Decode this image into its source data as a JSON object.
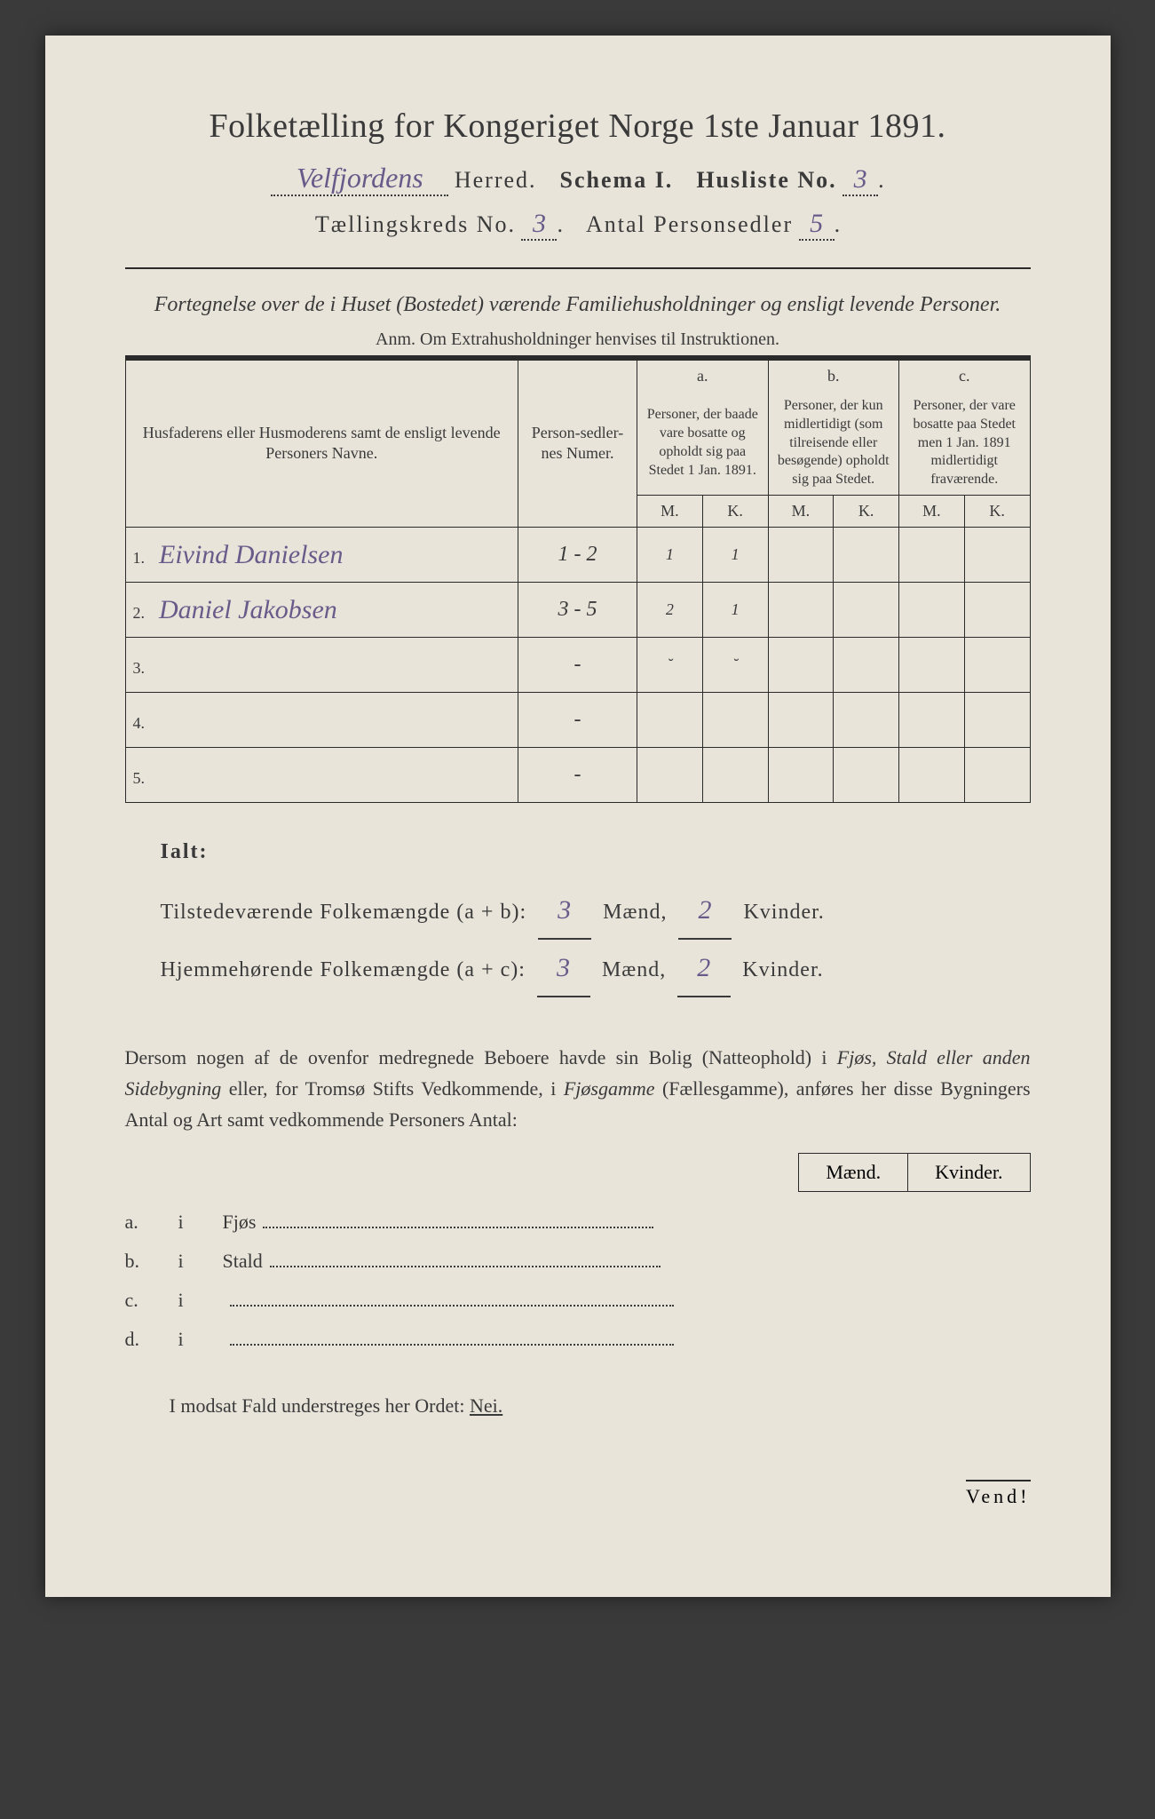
{
  "title": "Folketælling for Kongeriget Norge 1ste Januar 1891.",
  "header": {
    "herred_value": "Velfjordens",
    "herred_label": "Herred.",
    "schema_label": "Schema I.",
    "husliste_label": "Husliste No.",
    "husliste_no": "3",
    "tkreds_label": "Tællingskreds No.",
    "tkreds_no": "3",
    "personsedler_label": "Antal Personsedler",
    "personsedler_no": "5"
  },
  "subtitle": "Fortegnelse over de i Huset (Bostedet) værende Familiehusholdninger og ensligt levende Personer.",
  "anm": "Anm. Om Extrahusholdninger henvises til Instruktionen.",
  "table": {
    "col_names": "Husfaderens eller Husmoderens samt de ensligt levende Personers Navne.",
    "col_psn": "Person-sedler-nes Numer.",
    "col_a_letter": "a.",
    "col_a": "Personer, der baade vare bosatte og opholdt sig paa Stedet 1 Jan. 1891.",
    "col_b_letter": "b.",
    "col_b": "Personer, der kun midlertidigt (som tilreisende eller besøgende) opholdt sig paa Stedet.",
    "col_c_letter": "c.",
    "col_c": "Personer, der vare bosatte paa Stedet men 1 Jan. 1891 midlertidigt fraværende.",
    "m": "M.",
    "k": "K.",
    "rows": [
      {
        "num": "1.",
        "name": "Eivind Danielsen",
        "psn": "1 - 2",
        "am": "1",
        "ak": "1",
        "bm": "",
        "bk": "",
        "cm": "",
        "ck": ""
      },
      {
        "num": "2.",
        "name": "Daniel Jakobsen",
        "psn": "3 - 5",
        "am": "2",
        "ak": "1",
        "bm": "",
        "bk": "",
        "cm": "",
        "ck": ""
      },
      {
        "num": "3.",
        "name": "",
        "psn": "-",
        "am": "˘",
        "ak": "˘",
        "bm": "",
        "bk": "",
        "cm": "",
        "ck": ""
      },
      {
        "num": "4.",
        "name": "",
        "psn": "-",
        "am": "",
        "ak": "",
        "bm": "",
        "bk": "",
        "cm": "",
        "ck": ""
      },
      {
        "num": "5.",
        "name": "",
        "psn": "-",
        "am": "",
        "ak": "",
        "bm": "",
        "bk": "",
        "cm": "",
        "ck": ""
      }
    ]
  },
  "ialt": {
    "label": "Ialt:",
    "line1_a": "Tilstedeværende Folkemængde (a + b):",
    "line1_m": "3",
    "line1_k": "2",
    "line2_a": "Hjemmehørende Folkemængde (a + c):",
    "line2_m": "3",
    "line2_k": "2",
    "maend": "Mænd,",
    "kvinder": "Kvinder."
  },
  "dersom": {
    "text1": "Dersom nogen af de ovenfor medregnede Beboere havde sin Bolig (Natteophold) i ",
    "i1": "Fjøs, Stald eller anden Sidebygning",
    "text2": " eller, for Tromsø Stifts Vedkommende, i ",
    "i2": "Fjøsgamme",
    "text3": " (Fællesgamme), anføres her disse Bygningers Antal og Art samt vedkommende Personers Antal:"
  },
  "mk": {
    "m": "Mænd.",
    "k": "Kvinder."
  },
  "list": {
    "a": {
      "prefix": "a.",
      "i": "i",
      "label": "Fjøs"
    },
    "b": {
      "prefix": "b.",
      "i": "i",
      "label": "Stald"
    },
    "c": {
      "prefix": "c.",
      "i": "i",
      "label": ""
    },
    "d": {
      "prefix": "d.",
      "i": "i",
      "label": ""
    }
  },
  "modsat": {
    "text": "I modsat Fald understreges her Ordet: ",
    "nei": "Nei."
  },
  "vend": "Vend!"
}
